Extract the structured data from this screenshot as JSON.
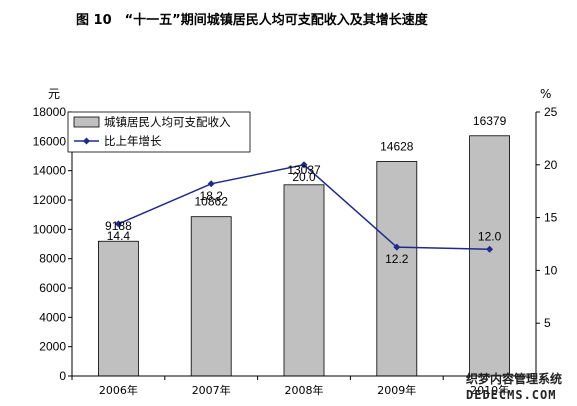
{
  "chart_data": {
    "type": "bar",
    "title": "图 10　“十一五”期间城镇居民人均可支配收入及其增长速度",
    "categories": [
      "2006年",
      "2007年",
      "2008年",
      "2009年",
      "2010年"
    ],
    "left_axis": {
      "unit": "元",
      "ylim": [
        0,
        18000
      ],
      "ticks": [
        "0",
        "2000",
        "4000",
        "6000",
        "8000",
        "10000",
        "12000",
        "14000",
        "16000",
        "18000"
      ]
    },
    "right_axis": {
      "unit": "%",
      "ylim": [
        0,
        25
      ],
      "ticks": [
        "5",
        "10",
        "15",
        "20",
        "25"
      ]
    },
    "series": [
      {
        "name": "城镇居民人均可支配收入",
        "kind": "bar",
        "axis": "left",
        "color": "#c0c0c0",
        "values": [
          9188,
          10862,
          13037,
          14628,
          16379
        ],
        "labels": [
          "9188",
          "10862",
          "13037",
          "14628",
          "16379"
        ]
      },
      {
        "name": "比上年增长",
        "kind": "line",
        "axis": "right",
        "color": "#1f2a8c",
        "values": [
          14.4,
          18.2,
          20.0,
          12.2,
          12.0
        ],
        "labels": [
          "14.4",
          "18.2",
          "20.0",
          "12.2",
          "12.0"
        ]
      }
    ],
    "legend_position": "top-left",
    "grid": false
  },
  "watermark": {
    "line1": "织梦内容管理系统",
    "line2": "DEDECMS.COM"
  }
}
